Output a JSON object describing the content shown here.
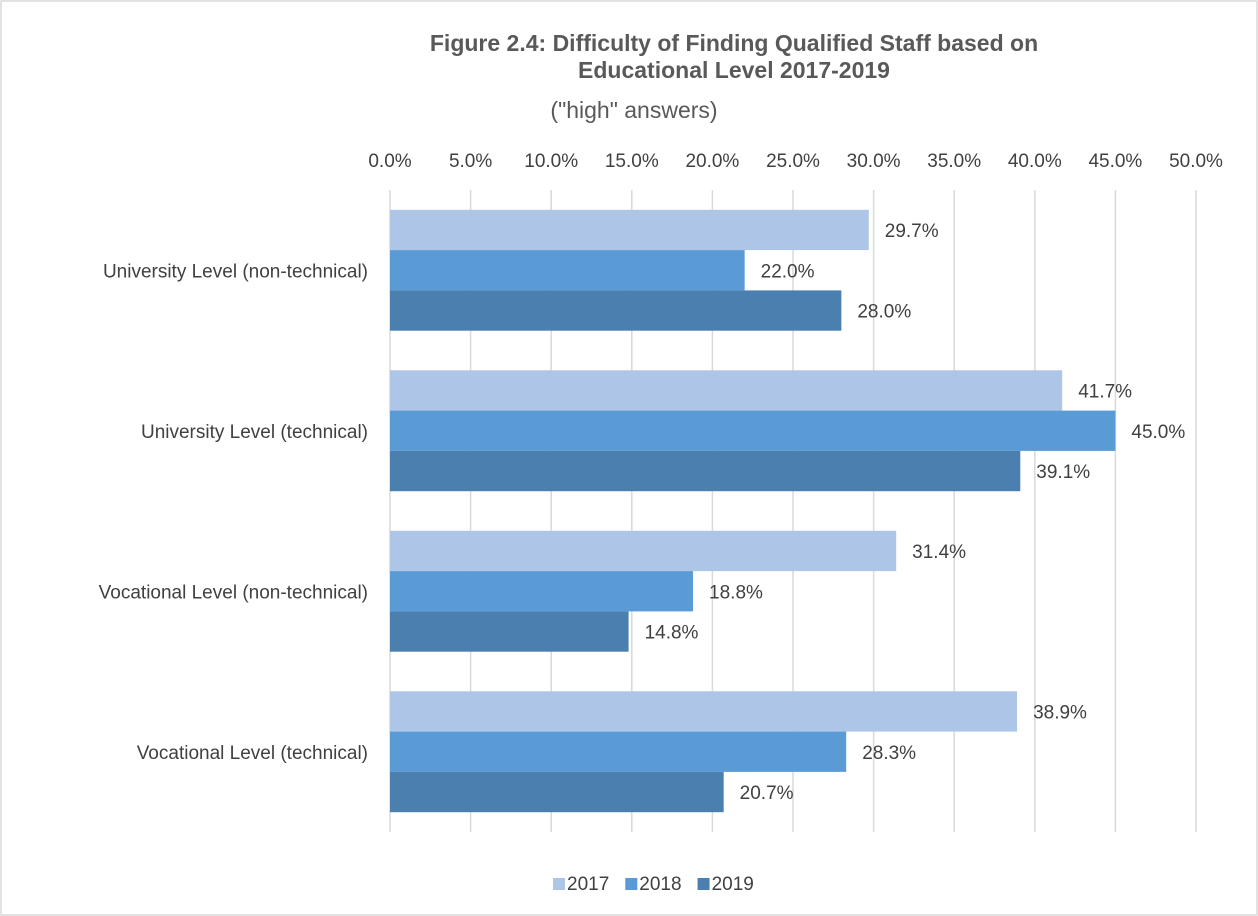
{
  "chart_data": {
    "type": "hbar",
    "title": "Figure 2.4: Difficulty of Finding Qualified Staff based on Educational Level 2017-2019",
    "subtitle": "(\"high\" answers)",
    "categories": [
      "University Level (non-technical)",
      "University Level (technical)",
      "Vocational Level (non-technical)",
      "Vocational Level (technical)"
    ],
    "series": [
      {
        "name": "2017",
        "color": "#adc5e7",
        "values": [
          29.7,
          41.7,
          31.4,
          38.9
        ],
        "value_labels": [
          "29.7%",
          "41.7%",
          "31.4%",
          "38.9%"
        ]
      },
      {
        "name": "2018",
        "color": "#5b9bd5",
        "values": [
          22.0,
          45.0,
          18.8,
          28.3
        ],
        "value_labels": [
          "22.0%",
          "45.0%",
          "18.8%",
          "28.3%"
        ]
      },
      {
        "name": "2019",
        "color": "#4a7fb0",
        "values": [
          28.0,
          39.1,
          14.8,
          20.7
        ],
        "value_labels": [
          "28.0%",
          "39.1%",
          "14.8%",
          "20.7%"
        ]
      }
    ],
    "xlim": [
      0,
      50
    ],
    "xticks": [
      {
        "value": 0,
        "label": "0.0%"
      },
      {
        "value": 5,
        "label": "5.0%"
      },
      {
        "value": 10,
        "label": "10.0%"
      },
      {
        "value": 15,
        "label": "15.0%"
      },
      {
        "value": 20,
        "label": "20.0%"
      },
      {
        "value": 25,
        "label": "25.0%"
      },
      {
        "value": 30,
        "label": "30.0%"
      },
      {
        "value": 35,
        "label": "35.0%"
      },
      {
        "value": 40,
        "label": "40.0%"
      },
      {
        "value": 45,
        "label": "45.0%"
      },
      {
        "value": 50,
        "label": "50.0%"
      }
    ],
    "grid": true,
    "legend": "bottom"
  }
}
